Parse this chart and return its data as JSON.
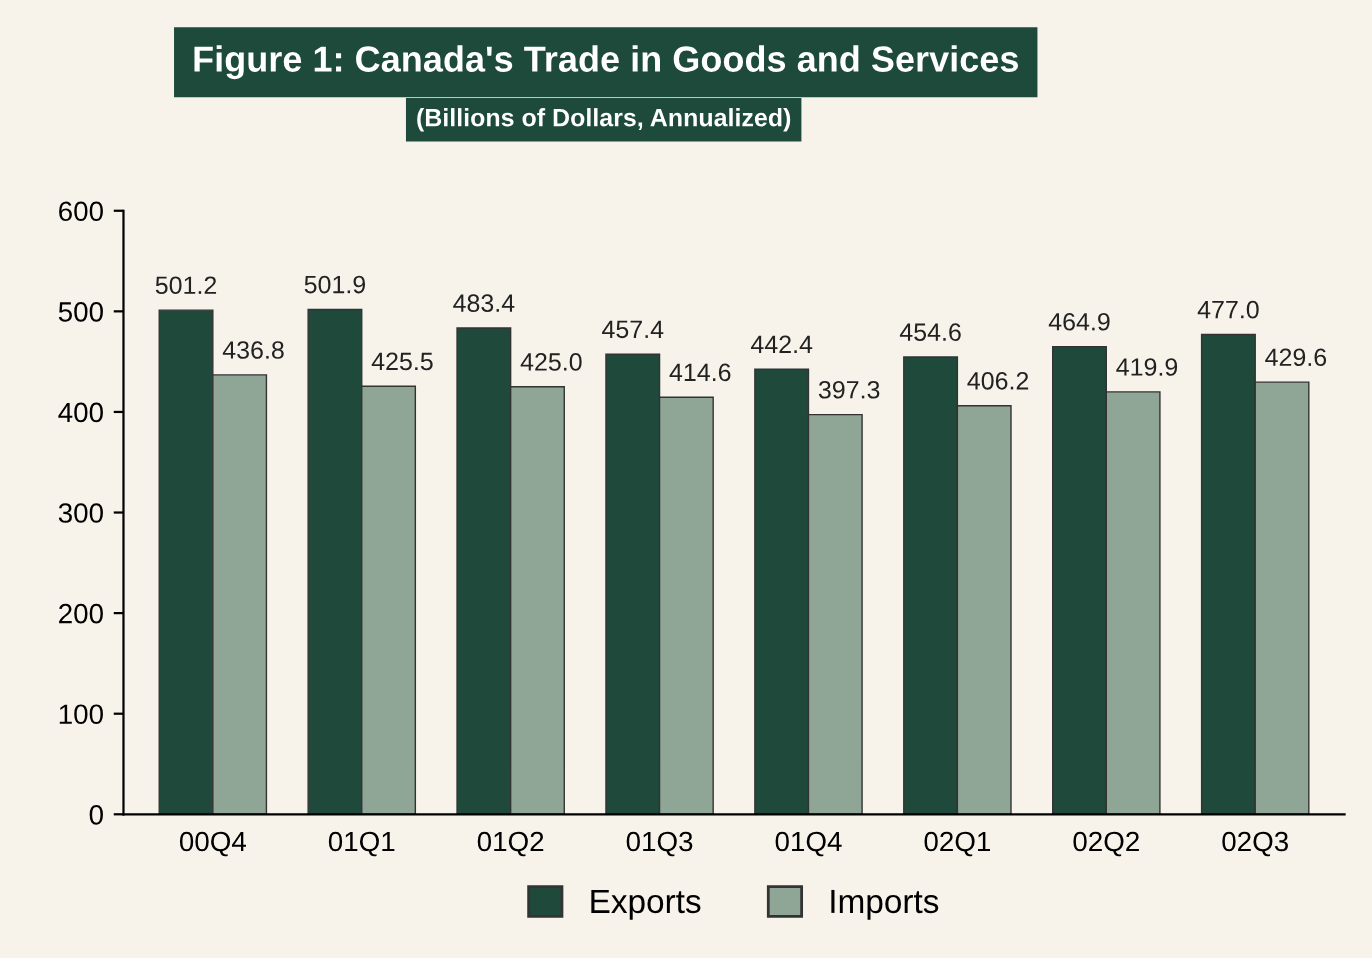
{
  "chart_data": {
    "type": "bar",
    "title": "Figure 1: Canada's Trade in Goods and Services",
    "subtitle": "(Billions of Dollars, Annualized)",
    "categories": [
      "00Q4",
      "01Q1",
      "01Q2",
      "01Q3",
      "01Q4",
      "02Q1",
      "02Q2",
      "02Q3"
    ],
    "series": [
      {
        "name": "Exports",
        "color": "#1f4a3b",
        "values": [
          501.2,
          501.9,
          483.4,
          457.4,
          442.4,
          454.6,
          464.9,
          477.0
        ],
        "value_labels": [
          "501.2",
          "501.9",
          "483.4",
          "457.4",
          "442.4",
          "454.6",
          "464.9",
          "477.0"
        ]
      },
      {
        "name": "Imports",
        "color": "#8fa596",
        "values": [
          436.8,
          425.5,
          425.0,
          414.6,
          397.3,
          406.2,
          419.9,
          429.6
        ],
        "value_labels": [
          "436.8",
          "425.5",
          "425.0",
          "414.6",
          "397.3",
          "406.2",
          "419.9",
          "429.6"
        ]
      }
    ],
    "ylim": [
      0,
      600
    ],
    "yticks": [
      0,
      100,
      200,
      300,
      400,
      500,
      600
    ],
    "grid": false,
    "legend": "bottom"
  }
}
